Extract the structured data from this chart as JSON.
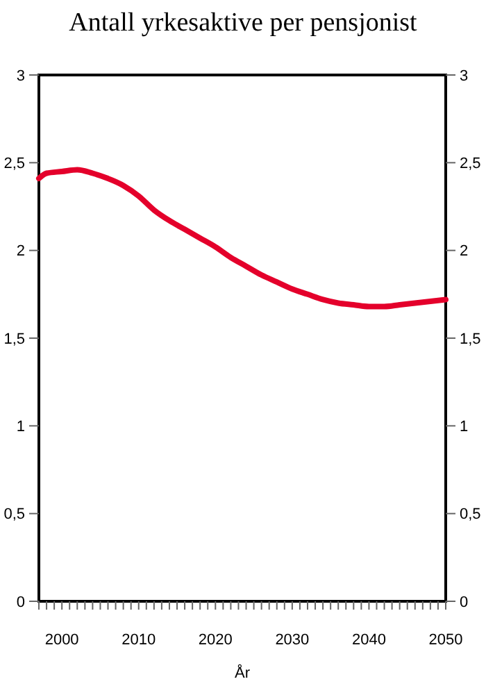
{
  "chart_data": {
    "type": "line",
    "title": "Antall yrkesaktive per pensjonist",
    "xlabel": "År",
    "x": [
      1997,
      1998,
      2000,
      2002,
      2004,
      2006,
      2008,
      2010,
      2012,
      2014,
      2016,
      2018,
      2020,
      2022,
      2024,
      2026,
      2028,
      2030,
      2032,
      2034,
      2036,
      2038,
      2040,
      2042,
      2044,
      2046,
      2048,
      2050
    ],
    "series": [
      {
        "color": "#e4002b",
        "values": [
          2.41,
          2.44,
          2.45,
          2.46,
          2.44,
          2.41,
          2.37,
          2.31,
          2.23,
          2.17,
          2.12,
          2.07,
          2.02,
          1.96,
          1.91,
          1.86,
          1.82,
          1.78,
          1.75,
          1.72,
          1.7,
          1.69,
          1.68,
          1.68,
          1.69,
          1.7,
          1.71,
          1.72
        ]
      }
    ],
    "xlim": [
      1997,
      2050
    ],
    "xticks": [
      {
        "value": 1997,
        "label": null
      },
      {
        "value": 1998,
        "label": null
      },
      {
        "value": 1999,
        "label": null
      },
      2000,
      {
        "value": 2001,
        "label": null
      },
      {
        "value": 2002,
        "label": null
      },
      {
        "value": 2003,
        "label": null
      },
      {
        "value": 2004,
        "label": null
      },
      {
        "value": 2005,
        "label": null
      },
      {
        "value": 2006,
        "label": null
      },
      {
        "value": 2007,
        "label": null
      },
      {
        "value": 2008,
        "label": null
      },
      {
        "value": 2009,
        "label": null
      },
      2010,
      {
        "value": 2011,
        "label": null
      },
      {
        "value": 2012,
        "label": null
      },
      {
        "value": 2013,
        "label": null
      },
      {
        "value": 2014,
        "label": null
      },
      {
        "value": 2015,
        "label": null
      },
      {
        "value": 2016,
        "label": null
      },
      {
        "value": 2017,
        "label": null
      },
      {
        "value": 2018,
        "label": null
      },
      {
        "value": 2019,
        "label": null
      },
      2020,
      {
        "value": 2021,
        "label": null
      },
      {
        "value": 2022,
        "label": null
      },
      {
        "value": 2023,
        "label": null
      },
      {
        "value": 2024,
        "label": null
      },
      {
        "value": 2025,
        "label": null
      },
      {
        "value": 2026,
        "label": null
      },
      {
        "value": 2027,
        "label": null
      },
      {
        "value": 2028,
        "label": null
      },
      {
        "value": 2029,
        "label": null
      },
      2030,
      {
        "value": 2031,
        "label": null
      },
      {
        "value": 2032,
        "label": null
      },
      {
        "value": 2033,
        "label": null
      },
      {
        "value": 2034,
        "label": null
      },
      {
        "value": 2035,
        "label": null
      },
      {
        "value": 2036,
        "label": null
      },
      {
        "value": 2037,
        "label": null
      },
      {
        "value": 2038,
        "label": null
      },
      {
        "value": 2039,
        "label": null
      },
      2040,
      {
        "value": 2041,
        "label": null
      },
      {
        "value": 2042,
        "label": null
      },
      {
        "value": 2043,
        "label": null
      },
      {
        "value": 2044,
        "label": null
      },
      {
        "value": 2045,
        "label": null
      },
      {
        "value": 2046,
        "label": null
      },
      {
        "value": 2047,
        "label": null
      },
      {
        "value": 2048,
        "label": null
      },
      {
        "value": 2049,
        "label": null
      },
      2050
    ],
    "ylim": [
      0,
      3
    ],
    "yticks": [
      0,
      {
        "value": 0.5,
        "label": "0,5"
      },
      1,
      {
        "value": 1.5,
        "label": "1,5"
      },
      2,
      {
        "value": 2.5,
        "label": "2,5"
      },
      3
    ],
    "y2lim": [
      0,
      3
    ],
    "y2ticks": [
      0,
      {
        "value": 0.5,
        "label": "0,5"
      },
      1,
      {
        "value": 1.5,
        "label": "1,5"
      },
      2,
      {
        "value": 2.5,
        "label": "2,5"
      },
      3
    ],
    "grid": false,
    "marker": "none",
    "line_style": "solid"
  }
}
